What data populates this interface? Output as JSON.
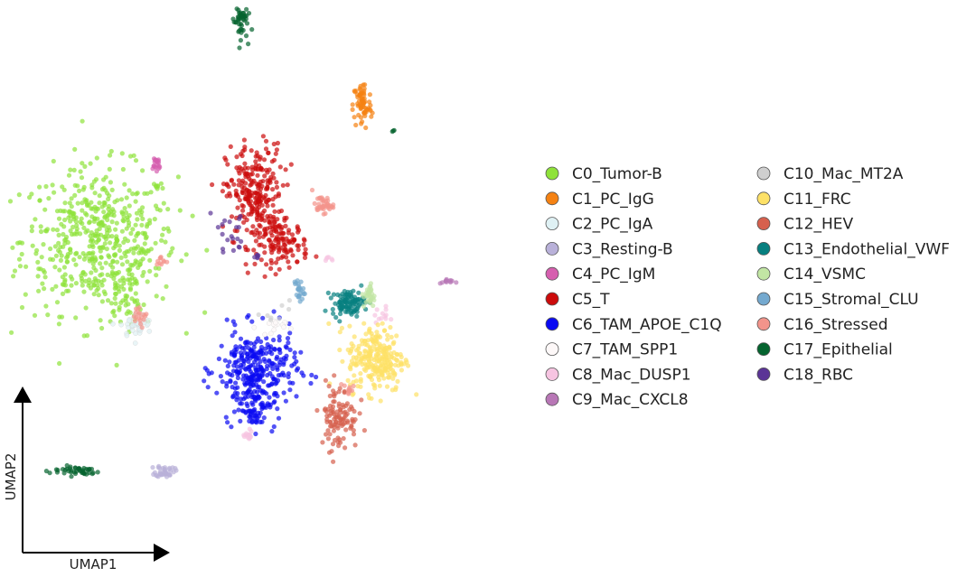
{
  "chart_data": {
    "type": "scatter",
    "title": "",
    "xlabel": "UMAP1",
    "ylabel": "UMAP2",
    "grid": false,
    "legend_position": "right",
    "ticks": "none",
    "series": [
      {
        "name": "C0_Tumor-B",
        "color": "#8fe23a",
        "clusters": [
          {
            "cx": -7.2,
            "cy": 3.0,
            "sx": 1.65,
            "sy": 1.75,
            "n": 520
          },
          {
            "cx": -6.2,
            "cy": 0.6,
            "sx": 0.45,
            "sy": 0.9,
            "n": 60
          }
        ]
      },
      {
        "name": "C1_PC_IgG",
        "color": "#f58213",
        "clusters": [
          {
            "cx": 4.0,
            "cy": 9.5,
            "sx": 0.2,
            "sy": 0.6,
            "n": 70
          }
        ]
      },
      {
        "name": "C2_PC_IgA",
        "color": "#dff1f4",
        "clusters": [
          {
            "cx": -5.6,
            "cy": -1.1,
            "sx": 0.35,
            "sy": 0.3,
            "n": 40
          }
        ]
      },
      {
        "name": "C3_Resting-B",
        "color": "#b9b1d9",
        "clusters": [
          {
            "cx": -4.4,
            "cy": -8.1,
            "sx": 0.2,
            "sy": 0.15,
            "n": 40
          }
        ]
      },
      {
        "name": "C4_PC_IgM",
        "color": "#d65faf",
        "clusters": [
          {
            "cx": -4.8,
            "cy": 6.6,
            "sx": 0.12,
            "sy": 0.25,
            "n": 20
          }
        ]
      },
      {
        "name": "C5_T",
        "color": "#cc0b0b",
        "clusters": [
          {
            "cx": -0.6,
            "cy": 5.2,
            "sx": 0.6,
            "sy": 1.2,
            "n": 260
          },
          {
            "cx": 0.6,
            "cy": 2.8,
            "sx": 0.55,
            "sy": 0.55,
            "n": 110
          }
        ]
      },
      {
        "name": "C6_TAM_APOE_C1Q",
        "color": "#0a0af2",
        "clusters": [
          {
            "cx": -0.5,
            "cy": -3.2,
            "sx": 0.85,
            "sy": 0.95,
            "n": 280
          },
          {
            "cx": -0.6,
            "cy": -4.7,
            "sx": 0.45,
            "sy": 0.7,
            "n": 90
          }
        ]
      },
      {
        "name": "C7_TAM_SPP1",
        "color": "#fdf8f8",
        "clusters": [
          {
            "cx": 0.1,
            "cy": -1.2,
            "sx": 0.3,
            "sy": 0.2,
            "n": 15
          }
        ]
      },
      {
        "name": "C8_Mac_DUSP1",
        "color": "#f6c4e1",
        "clusters": [
          {
            "cx": -0.9,
            "cy": -6.4,
            "sx": 0.15,
            "sy": 0.15,
            "n": 15
          },
          {
            "cx": 4.8,
            "cy": -0.6,
            "sx": 0.15,
            "sy": 0.2,
            "n": 12
          },
          {
            "cx": 2.5,
            "cy": 2.0,
            "sx": 0.12,
            "sy": 0.1,
            "n": 6
          }
        ]
      },
      {
        "name": "C9_Mac_CXCL8",
        "color": "#b877b6",
        "clusters": [
          {
            "cx": 7.6,
            "cy": 1.0,
            "sx": 0.15,
            "sy": 0.08,
            "n": 12
          }
        ]
      },
      {
        "name": "C10_Mac_MT2A",
        "color": "#cfcfcf",
        "clusters": [
          {
            "cx": 0.3,
            "cy": -0.5,
            "sx": 0.3,
            "sy": 0.3,
            "n": 8
          }
        ]
      },
      {
        "name": "C11_FRC",
        "color": "#fde167",
        "clusters": [
          {
            "cx": 4.6,
            "cy": -2.7,
            "sx": 0.6,
            "sy": 0.8,
            "n": 260
          }
        ]
      },
      {
        "name": "C12_HEV",
        "color": "#d6604d",
        "clusters": [
          {
            "cx": 3.0,
            "cy": -5.5,
            "sx": 0.4,
            "sy": 0.8,
            "n": 110
          }
        ]
      },
      {
        "name": "C13_Endothelial_VWF",
        "color": "#078080",
        "clusters": [
          {
            "cx": 3.4,
            "cy": 0.0,
            "sx": 0.35,
            "sy": 0.3,
            "n": 100
          }
        ]
      },
      {
        "name": "C14_VSMC",
        "color": "#c2e6a4",
        "clusters": [
          {
            "cx": 4.3,
            "cy": 0.3,
            "sx": 0.12,
            "sy": 0.3,
            "n": 30
          }
        ]
      },
      {
        "name": "C15_Stromal_CLU",
        "color": "#74a9cf",
        "clusters": [
          {
            "cx": 1.3,
            "cy": 0.6,
            "sx": 0.1,
            "sy": 0.3,
            "n": 25
          }
        ]
      },
      {
        "name": "C16_Stressed",
        "color": "#f3948b",
        "clusters": [
          {
            "cx": 2.3,
            "cy": 4.7,
            "sx": 0.22,
            "sy": 0.2,
            "n": 40
          },
          {
            "cx": -5.4,
            "cy": -0.7,
            "sx": 0.15,
            "sy": 0.2,
            "n": 18
          },
          {
            "cx": -4.6,
            "cy": 2.0,
            "sx": 0.1,
            "sy": 0.12,
            "n": 10
          },
          {
            "cx": 3.4,
            "cy": -4.2,
            "sx": 0.2,
            "sy": 0.2,
            "n": 10
          }
        ]
      },
      {
        "name": "C17_Epithelial",
        "color": "#05642f",
        "clusters": [
          {
            "cx": -1.2,
            "cy": 13.6,
            "sx": 0.15,
            "sy": 0.45,
            "n": 45
          },
          {
            "cx": -8.2,
            "cy": -8.1,
            "sx": 0.55,
            "sy": 0.12,
            "n": 45
          },
          {
            "cx": 5.3,
            "cy": 8.3,
            "sx": 0.03,
            "sy": 0.03,
            "n": 3
          }
        ]
      },
      {
        "name": "C18_RBC",
        "color": "#5b3496",
        "clusters": [
          {
            "cx": -1.6,
            "cy": 3.2,
            "sx": 0.5,
            "sy": 0.8,
            "n": 20
          },
          {
            "cx": -0.5,
            "cy": 2.2,
            "sx": 0.05,
            "sy": 0.05,
            "n": 6
          }
        ]
      }
    ]
  }
}
